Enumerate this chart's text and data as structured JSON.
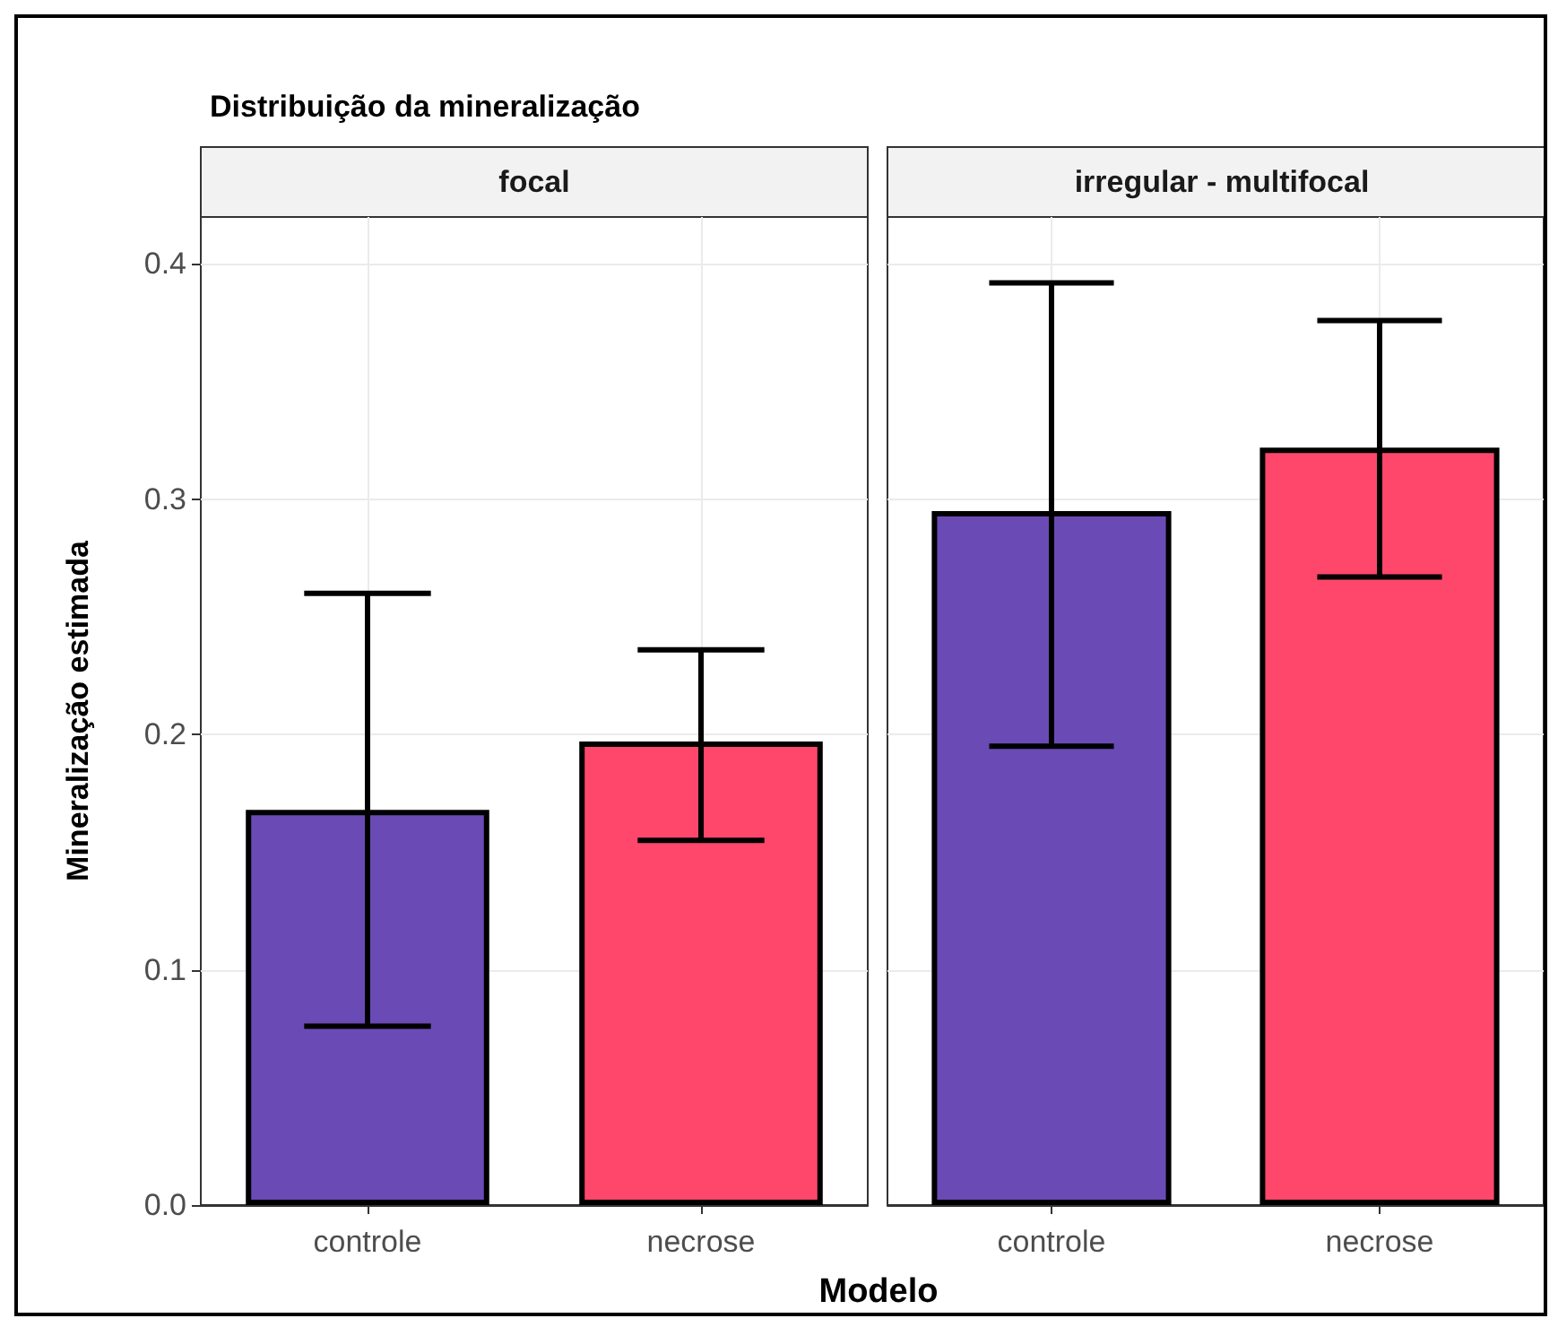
{
  "chart_data": [
    {
      "type": "bar",
      "title": "Distribuição da mineralização",
      "subtitle": "focal",
      "xlabel": "Modelo",
      "ylabel": "Mineralização estimada",
      "categories": [
        "controle",
        "necrose"
      ],
      "series": [
        {
          "values": [
            0.168,
            0.197
          ],
          "errors": [
            [
              0.076,
              0.26
            ],
            [
              0.155,
              0.236
            ]
          ],
          "colors": [
            "#6a4bb5",
            "#ff476b"
          ]
        }
      ],
      "ylim": [
        0,
        0.42
      ],
      "yticks": [
        {
          "value": 0,
          "label": "0.0"
        },
        0.1,
        0.2,
        0.3,
        0.4
      ],
      "grid": true
    },
    {
      "type": "bar",
      "subtitle": "irregular - multifocal",
      "categories": [
        "controle",
        "necrose"
      ],
      "series": [
        {
          "values": [
            0.295,
            0.322
          ],
          "errors": [
            [
              0.195,
              0.392
            ],
            [
              0.267,
              0.376
            ]
          ],
          "colors": [
            "#6a4bb5",
            "#ff476b"
          ]
        }
      ],
      "ylim": [
        0,
        0.42
      ],
      "yticks": [
        0,
        0.1,
        0.2,
        0.3,
        0.4
      ],
      "grid": true,
      "tick_labels": "x"
    }
  ]
}
